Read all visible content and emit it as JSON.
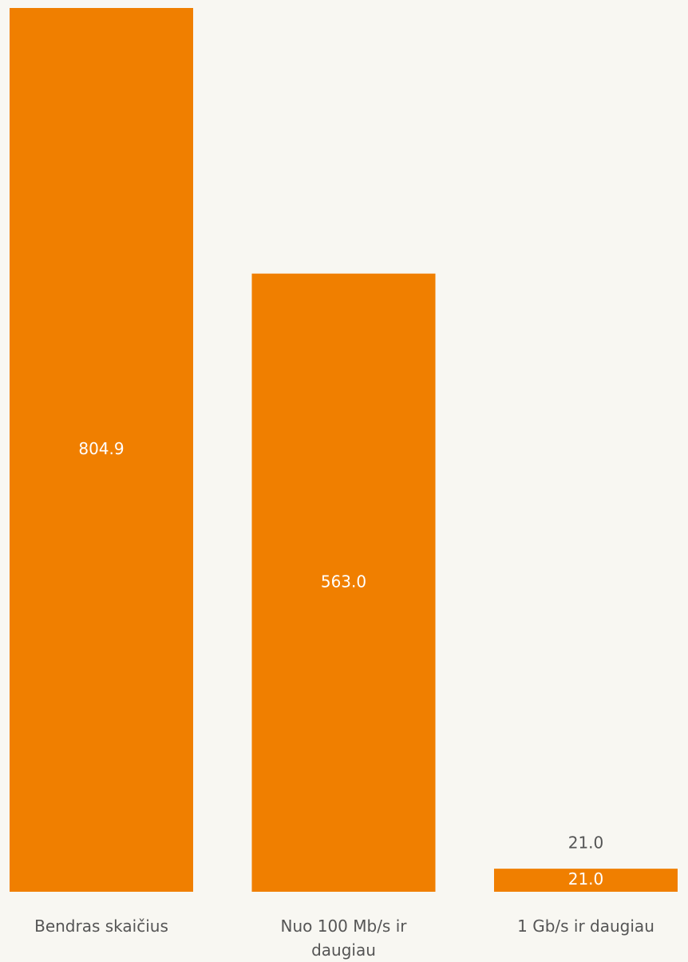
{
  "chart_data": {
    "type": "bar",
    "categories": [
      "Bendras skaičius",
      "Nuo 100 Mb/s ir daugiau",
      "1 Gb/s ir daugiau"
    ],
    "values": [
      804.9,
      563,
      21
    ],
    "value_labels": [
      "804.9",
      "563.0",
      "21.0"
    ],
    "color": "#f07f00"
  }
}
